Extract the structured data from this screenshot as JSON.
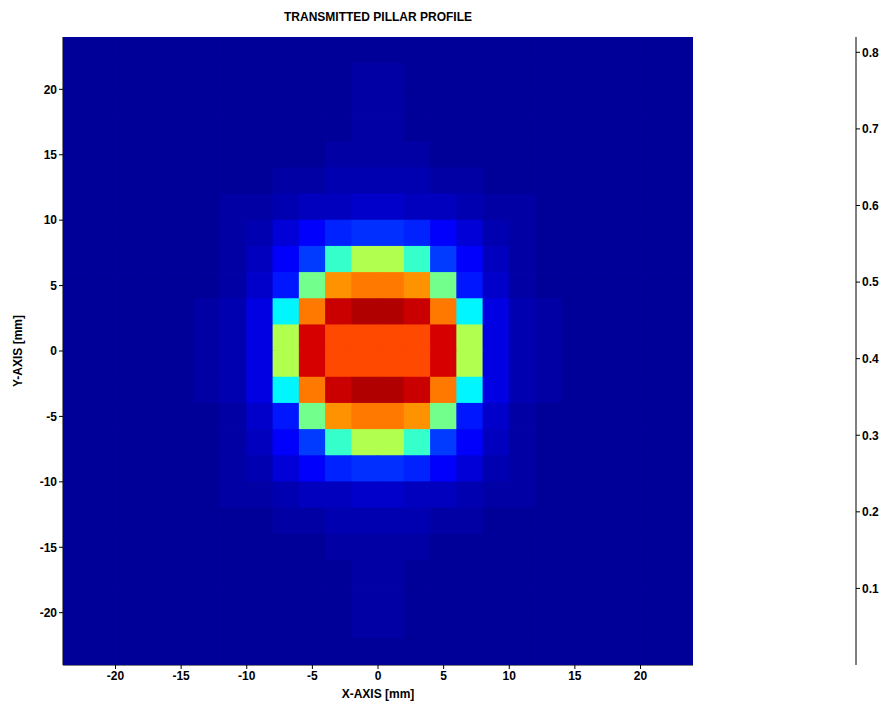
{
  "chart_data": {
    "type": "heatmap",
    "title": "TRANSMITTED PILLAR PROFILE",
    "x_label": "X-AXIS [mm]",
    "y_label": "Y-AXIS [mm]",
    "x": [
      -23,
      -21,
      -19,
      -17,
      -15,
      -13,
      -11,
      -9,
      -7,
      -5,
      -3,
      -1,
      1,
      3,
      5,
      7,
      9,
      11,
      13,
      15,
      17,
      19,
      21,
      23
    ],
    "y": [
      23,
      21,
      19,
      17,
      15,
      13,
      11,
      9,
      7,
      5,
      3,
      1,
      -1,
      -3,
      -5,
      -7,
      -9,
      -11,
      -13,
      -15,
      -17,
      -19,
      -21,
      -23
    ],
    "cells": [
      [
        0.02,
        0.02,
        0.02,
        0.02,
        0.02,
        0.02,
        0.02,
        0.02,
        0.02,
        0.02,
        0.02,
        0.02,
        0.02,
        0.02,
        0.02,
        0.02,
        0.02,
        0.02,
        0.02,
        0.02,
        0.02,
        0.02,
        0.02,
        0.02
      ],
      [
        0.02,
        0.02,
        0.02,
        0.02,
        0.02,
        0.02,
        0.02,
        0.02,
        0.02,
        0.02,
        0.02,
        0.03,
        0.03,
        0.02,
        0.02,
        0.02,
        0.02,
        0.02,
        0.02,
        0.02,
        0.02,
        0.02,
        0.02,
        0.02
      ],
      [
        0.02,
        0.02,
        0.02,
        0.02,
        0.02,
        0.02,
        0.02,
        0.02,
        0.02,
        0.02,
        0.02,
        0.03,
        0.03,
        0.02,
        0.02,
        0.02,
        0.02,
        0.02,
        0.02,
        0.02,
        0.02,
        0.02,
        0.02,
        0.02
      ],
      [
        0.02,
        0.02,
        0.02,
        0.02,
        0.02,
        0.02,
        0.02,
        0.02,
        0.02,
        0.02,
        0.02,
        0.03,
        0.03,
        0.02,
        0.02,
        0.02,
        0.02,
        0.02,
        0.02,
        0.02,
        0.02,
        0.02,
        0.02,
        0.02
      ],
      [
        0.02,
        0.02,
        0.02,
        0.02,
        0.02,
        0.02,
        0.02,
        0.02,
        0.02,
        0.02,
        0.03,
        0.03,
        0.03,
        0.03,
        0.02,
        0.02,
        0.02,
        0.02,
        0.02,
        0.02,
        0.02,
        0.02,
        0.02,
        0.02
      ],
      [
        0.02,
        0.02,
        0.02,
        0.02,
        0.02,
        0.02,
        0.02,
        0.02,
        0.03,
        0.03,
        0.04,
        0.04,
        0.04,
        0.04,
        0.03,
        0.03,
        0.02,
        0.02,
        0.02,
        0.02,
        0.02,
        0.02,
        0.02,
        0.02
      ],
      [
        0.02,
        0.02,
        0.02,
        0.02,
        0.02,
        0.02,
        0.03,
        0.03,
        0.04,
        0.05,
        0.05,
        0.06,
        0.06,
        0.05,
        0.05,
        0.04,
        0.03,
        0.03,
        0.02,
        0.02,
        0.02,
        0.02,
        0.02,
        0.02
      ],
      [
        0.02,
        0.02,
        0.02,
        0.02,
        0.02,
        0.02,
        0.03,
        0.04,
        0.07,
        0.1,
        0.13,
        0.14,
        0.14,
        0.13,
        0.1,
        0.07,
        0.04,
        0.03,
        0.02,
        0.02,
        0.02,
        0.02,
        0.02,
        0.02
      ],
      [
        0.02,
        0.02,
        0.02,
        0.02,
        0.02,
        0.02,
        0.03,
        0.05,
        0.1,
        0.15,
        0.35,
        0.45,
        0.45,
        0.35,
        0.15,
        0.1,
        0.05,
        0.03,
        0.02,
        0.02,
        0.02,
        0.02,
        0.02,
        0.02
      ],
      [
        0.02,
        0.02,
        0.02,
        0.02,
        0.02,
        0.02,
        0.03,
        0.06,
        0.12,
        0.4,
        0.6,
        0.62,
        0.62,
        0.6,
        0.4,
        0.12,
        0.06,
        0.03,
        0.02,
        0.02,
        0.02,
        0.02,
        0.02,
        0.02
      ],
      [
        0.02,
        0.02,
        0.02,
        0.02,
        0.02,
        0.03,
        0.04,
        0.08,
        0.3,
        0.62,
        0.76,
        0.78,
        0.78,
        0.76,
        0.62,
        0.3,
        0.08,
        0.04,
        0.03,
        0.02,
        0.02,
        0.02,
        0.02,
        0.02
      ],
      [
        0.02,
        0.02,
        0.02,
        0.02,
        0.02,
        0.03,
        0.04,
        0.08,
        0.45,
        0.75,
        0.66,
        0.66,
        0.66,
        0.66,
        0.75,
        0.45,
        0.08,
        0.04,
        0.03,
        0.02,
        0.02,
        0.02,
        0.02,
        0.02
      ],
      [
        0.02,
        0.02,
        0.02,
        0.02,
        0.02,
        0.03,
        0.04,
        0.08,
        0.45,
        0.75,
        0.66,
        0.66,
        0.66,
        0.66,
        0.75,
        0.45,
        0.08,
        0.04,
        0.03,
        0.02,
        0.02,
        0.02,
        0.02,
        0.02
      ],
      [
        0.02,
        0.02,
        0.02,
        0.02,
        0.02,
        0.03,
        0.04,
        0.08,
        0.3,
        0.62,
        0.76,
        0.78,
        0.78,
        0.76,
        0.62,
        0.3,
        0.08,
        0.04,
        0.03,
        0.02,
        0.02,
        0.02,
        0.02,
        0.02
      ],
      [
        0.02,
        0.02,
        0.02,
        0.02,
        0.02,
        0.02,
        0.03,
        0.06,
        0.12,
        0.4,
        0.6,
        0.62,
        0.62,
        0.6,
        0.4,
        0.12,
        0.06,
        0.03,
        0.02,
        0.02,
        0.02,
        0.02,
        0.02,
        0.02
      ],
      [
        0.02,
        0.02,
        0.02,
        0.02,
        0.02,
        0.02,
        0.03,
        0.05,
        0.1,
        0.15,
        0.35,
        0.45,
        0.45,
        0.35,
        0.15,
        0.1,
        0.05,
        0.03,
        0.02,
        0.02,
        0.02,
        0.02,
        0.02,
        0.02
      ],
      [
        0.02,
        0.02,
        0.02,
        0.02,
        0.02,
        0.02,
        0.03,
        0.04,
        0.07,
        0.1,
        0.13,
        0.14,
        0.14,
        0.13,
        0.1,
        0.07,
        0.04,
        0.03,
        0.02,
        0.02,
        0.02,
        0.02,
        0.02,
        0.02
      ],
      [
        0.02,
        0.02,
        0.02,
        0.02,
        0.02,
        0.02,
        0.03,
        0.03,
        0.04,
        0.05,
        0.05,
        0.06,
        0.06,
        0.05,
        0.05,
        0.04,
        0.03,
        0.03,
        0.02,
        0.02,
        0.02,
        0.02,
        0.02,
        0.02
      ],
      [
        0.02,
        0.02,
        0.02,
        0.02,
        0.02,
        0.02,
        0.02,
        0.02,
        0.03,
        0.03,
        0.04,
        0.04,
        0.04,
        0.04,
        0.03,
        0.03,
        0.02,
        0.02,
        0.02,
        0.02,
        0.02,
        0.02,
        0.02,
        0.02
      ],
      [
        0.02,
        0.02,
        0.02,
        0.02,
        0.02,
        0.02,
        0.02,
        0.02,
        0.02,
        0.02,
        0.03,
        0.03,
        0.03,
        0.03,
        0.02,
        0.02,
        0.02,
        0.02,
        0.02,
        0.02,
        0.02,
        0.02,
        0.02,
        0.02
      ],
      [
        0.02,
        0.02,
        0.02,
        0.02,
        0.02,
        0.02,
        0.02,
        0.02,
        0.02,
        0.02,
        0.02,
        0.03,
        0.03,
        0.02,
        0.02,
        0.02,
        0.02,
        0.02,
        0.02,
        0.02,
        0.02,
        0.02,
        0.02,
        0.02
      ],
      [
        0.02,
        0.02,
        0.02,
        0.02,
        0.02,
        0.02,
        0.02,
        0.02,
        0.02,
        0.02,
        0.02,
        0.03,
        0.03,
        0.02,
        0.02,
        0.02,
        0.02,
        0.02,
        0.02,
        0.02,
        0.02,
        0.02,
        0.02,
        0.02
      ],
      [
        0.02,
        0.02,
        0.02,
        0.02,
        0.02,
        0.02,
        0.02,
        0.02,
        0.02,
        0.02,
        0.02,
        0.03,
        0.03,
        0.02,
        0.02,
        0.02,
        0.02,
        0.02,
        0.02,
        0.02,
        0.02,
        0.02,
        0.02,
        0.02
      ],
      [
        0.02,
        0.02,
        0.02,
        0.02,
        0.02,
        0.02,
        0.02,
        0.02,
        0.02,
        0.02,
        0.02,
        0.02,
        0.02,
        0.02,
        0.02,
        0.02,
        0.02,
        0.02,
        0.02,
        0.02,
        0.02,
        0.02,
        0.02,
        0.02
      ]
    ],
    "xlim": [
      -24,
      24
    ],
    "ylim": [
      -24,
      24
    ],
    "xticks": [
      -20,
      -15,
      -10,
      -5,
      0,
      5,
      10,
      15,
      20
    ],
    "yticks": [
      -20,
      -15,
      -10,
      -5,
      0,
      5,
      10,
      15,
      20
    ],
    "colorbar": {
      "lim": [
        0,
        0.82
      ],
      "ticks": [
        0.1,
        0.2,
        0.3,
        0.4,
        0.5,
        0.6,
        0.7,
        0.8
      ]
    }
  }
}
